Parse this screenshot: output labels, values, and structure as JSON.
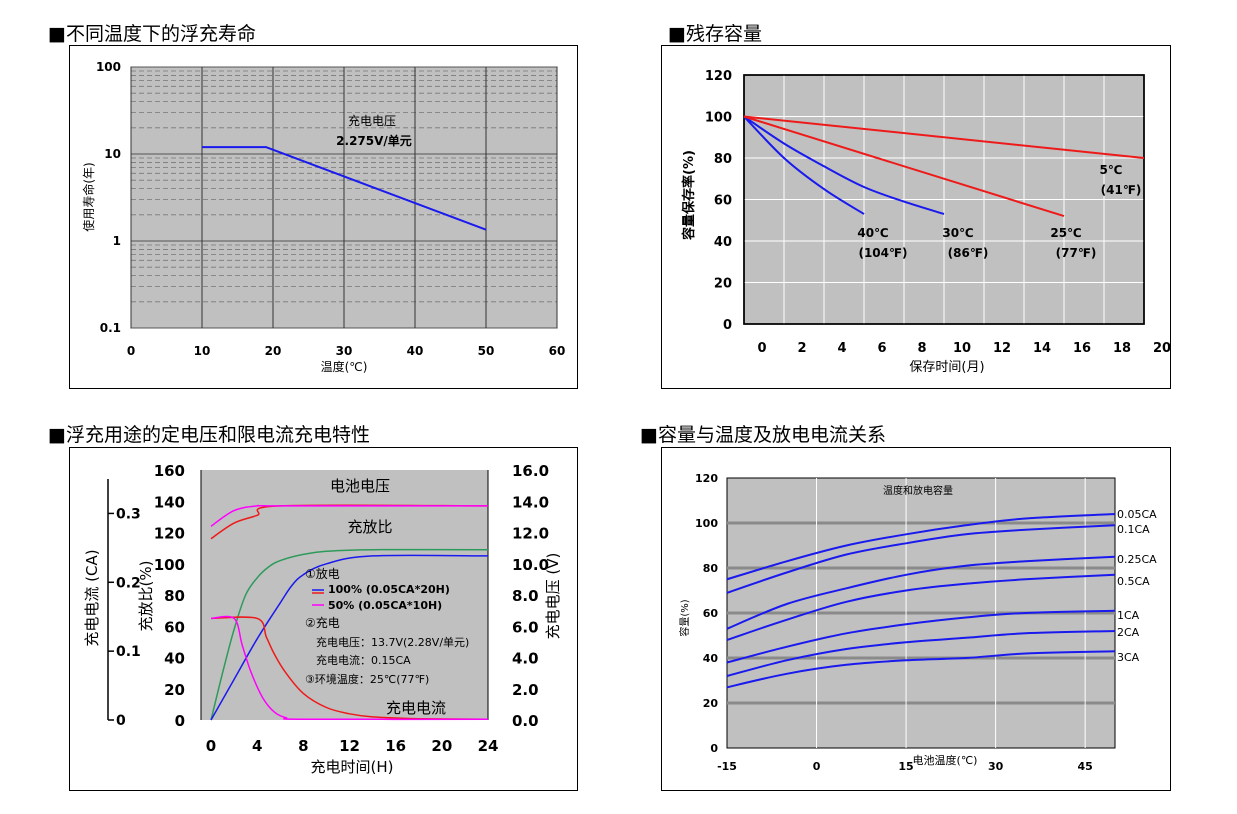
{
  "headings": {
    "h1": "■不同温度下的浮充寿命",
    "h2": "■残存容量",
    "h3": "■浮充用途的定电压和限电流充电特性",
    "h4": "■容量与温度及放电电流关系"
  },
  "colors": {
    "plot_bg": "#c0c0c0",
    "blue": "#1a1aee",
    "red": "#ee1a1a",
    "green": "#2e9a5a",
    "magenta": "#ff00ff",
    "grid_dash": "#777777"
  },
  "chart_data": [
    {
      "id": "float_life",
      "type": "line",
      "title": "",
      "xlabel": "温度(℃)",
      "ylabel": "使用寿命(年)",
      "yscale": "log",
      "xlim": [
        0,
        60
      ],
      "ylim": [
        0.1,
        100
      ],
      "x_ticks": [
        "0",
        "10",
        "20",
        "30",
        "40",
        "50",
        "60"
      ],
      "y_ticks": [
        "0.1",
        "1",
        "10",
        "100"
      ],
      "annotation": [
        "充电电压",
        "2.275V/单元"
      ],
      "series": [
        {
          "x": [
            10,
            19,
            50
          ],
          "y": [
            12,
            12,
            1.35
          ]
        }
      ]
    },
    {
      "id": "residual_capacity",
      "type": "line",
      "title": "",
      "xlabel": "保存时间(月)",
      "ylabel": "容量保存率(%)",
      "xlim": [
        0,
        20
      ],
      "ylim": [
        0,
        120
      ],
      "x_ticks": [
        "0",
        "2",
        "4",
        "6",
        "8",
        "10",
        "12",
        "14",
        "16",
        "18",
        "20"
      ],
      "y_ticks": [
        "0",
        "20",
        "40",
        "60",
        "80",
        "100",
        "120"
      ],
      "series": [
        {
          "name": "40℃",
          "name2": "(104℉)",
          "color": "blue",
          "x": [
            0,
            2,
            4,
            6
          ],
          "y": [
            100,
            80,
            65,
            53
          ]
        },
        {
          "name": "30℃",
          "name2": "(86℉)",
          "color": "blue",
          "x": [
            0,
            2,
            4,
            6,
            8,
            10
          ],
          "y": [
            100,
            87,
            76,
            66,
            59,
            53
          ]
        },
        {
          "name": "25℃",
          "name2": "(77℉)",
          "color": "red",
          "x": [
            0,
            16
          ],
          "y": [
            100,
            52
          ]
        },
        {
          "name": "5℃",
          "name2": "(41℉)",
          "color": "red",
          "x": [
            0,
            20
          ],
          "y": [
            100,
            80
          ]
        }
      ]
    },
    {
      "id": "charging_characteristics",
      "type": "line",
      "title": "",
      "xlabel": "充电时间(H)",
      "ylabel_left_outer": "充电电流 (CA)",
      "ylabel_left_inner": "充放比(%)",
      "ylabel_right": "充电电压 (V)",
      "xlim": [
        0,
        24
      ],
      "ylim_left": [
        0,
        160
      ],
      "ylim_right": [
        0,
        16
      ],
      "x_ticks": [
        "0",
        "4",
        "8",
        "12",
        "16",
        "20",
        "24"
      ],
      "y_ticks_left": [
        "0",
        "20",
        "40",
        "60",
        "80",
        "100",
        "120",
        "140",
        "160"
      ],
      "y_ticks_right": [
        "0.0",
        "2.0",
        "4.0",
        "6.0",
        "8.0",
        "10.0",
        "12.0",
        "14.0",
        "16.0"
      ],
      "current_ticks": [
        "0",
        "0.1",
        "0.2",
        "0.3"
      ],
      "labels": {
        "voltage": "电池电压",
        "ratio": "充放比",
        "current": "充电电流"
      },
      "legend": {
        "discharge": "①放电",
        "d100": "100% (0.05CA*20H)",
        "d50": "50% (0.05CA*10H)",
        "charge": "②充电",
        "cv": "充电电压：13.7V(2.28V/单元)",
        "cc": "充电电流：0.15CA",
        "temp": "③环境温度：25℃(77℉)"
      },
      "series": [
        {
          "name": "电池电压 100%",
          "color": "red",
          "x": [
            0,
            2,
            4,
            6,
            24
          ],
          "y": [
            116,
            126,
            131,
            137,
            137
          ]
        },
        {
          "name": "电池电压 50%",
          "color": "magenta",
          "x": [
            0,
            2,
            4,
            6,
            24
          ],
          "y": [
            124,
            134,
            137,
            137,
            137
          ]
        },
        {
          "name": "充放比 50%",
          "color": "green",
          "x": [
            0,
            1,
            2,
            3,
            4,
            5,
            6,
            8,
            10,
            14,
            24
          ],
          "y": [
            0,
            30,
            58,
            80,
            91,
            98,
            102,
            106,
            108,
            109,
            109
          ]
        },
        {
          "name": "充放比 100%",
          "color": "blue",
          "x": [
            0,
            2,
            4,
            6,
            7,
            8,
            10,
            14,
            24
          ],
          "y": [
            0,
            26,
            52,
            75,
            86,
            93,
            100,
            105,
            105
          ]
        },
        {
          "name": "充电电流 100%",
          "color": "red",
          "x": [
            0,
            4,
            4.8,
            5.5,
            6.5,
            8,
            10,
            12,
            14,
            18,
            24
          ],
          "y": [
            65,
            65,
            53,
            42,
            30,
            17,
            8,
            4,
            2,
            0.8,
            0.5
          ]
        },
        {
          "name": "充电电流 50%",
          "color": "magenta",
          "x": [
            0,
            2,
            2.7,
            3.5,
            4.5,
            5.5,
            6.5,
            8,
            24
          ],
          "y": [
            65,
            65,
            48,
            30,
            14,
            5,
            1.5,
            0.5,
            0.5
          ]
        }
      ]
    },
    {
      "id": "capacity_temperature",
      "type": "line",
      "title": "温度和放电容量",
      "xlabel": "电池温度(℃)",
      "ylabel": "容量(%)",
      "xlim": [
        -15,
        50
      ],
      "ylim": [
        0,
        120
      ],
      "x_ticks": [
        "-15",
        "0",
        "15",
        "30",
        "45"
      ],
      "y_ticks": [
        "0",
        "20",
        "40",
        "60",
        "80",
        "100",
        "120"
      ],
      "series": [
        {
          "name": "0.05CA",
          "x": [
            -15,
            -5,
            5,
            15,
            25,
            35,
            50
          ],
          "y": [
            75,
            83,
            90,
            95,
            99,
            102,
            104
          ]
        },
        {
          "name": "0.1CA",
          "x": [
            -15,
            -5,
            5,
            15,
            25,
            35,
            50
          ],
          "y": [
            69,
            78,
            86,
            91,
            95,
            97,
            99
          ]
        },
        {
          "name": "0.25CA",
          "x": [
            -15,
            -5,
            5,
            15,
            25,
            35,
            50
          ],
          "y": [
            53,
            64,
            71,
            77,
            81,
            83,
            85
          ]
        },
        {
          "name": "0.5CA",
          "x": [
            -15,
            -5,
            5,
            15,
            25,
            35,
            50
          ],
          "y": [
            48,
            57,
            65,
            70,
            73,
            75,
            77
          ]
        },
        {
          "name": "1CA",
          "x": [
            -15,
            -5,
            5,
            15,
            25,
            35,
            50
          ],
          "y": [
            38,
            45,
            51,
            55,
            58,
            60,
            61
          ]
        },
        {
          "name": "2CA",
          "x": [
            -15,
            -5,
            5,
            15,
            25,
            35,
            50
          ],
          "y": [
            32,
            39,
            44,
            47,
            49,
            51,
            52
          ]
        },
        {
          "name": "3CA",
          "x": [
            -15,
            -5,
            5,
            15,
            25,
            35,
            50
          ],
          "y": [
            27,
            33,
            37,
            39,
            40,
            42,
            43
          ]
        }
      ]
    }
  ]
}
